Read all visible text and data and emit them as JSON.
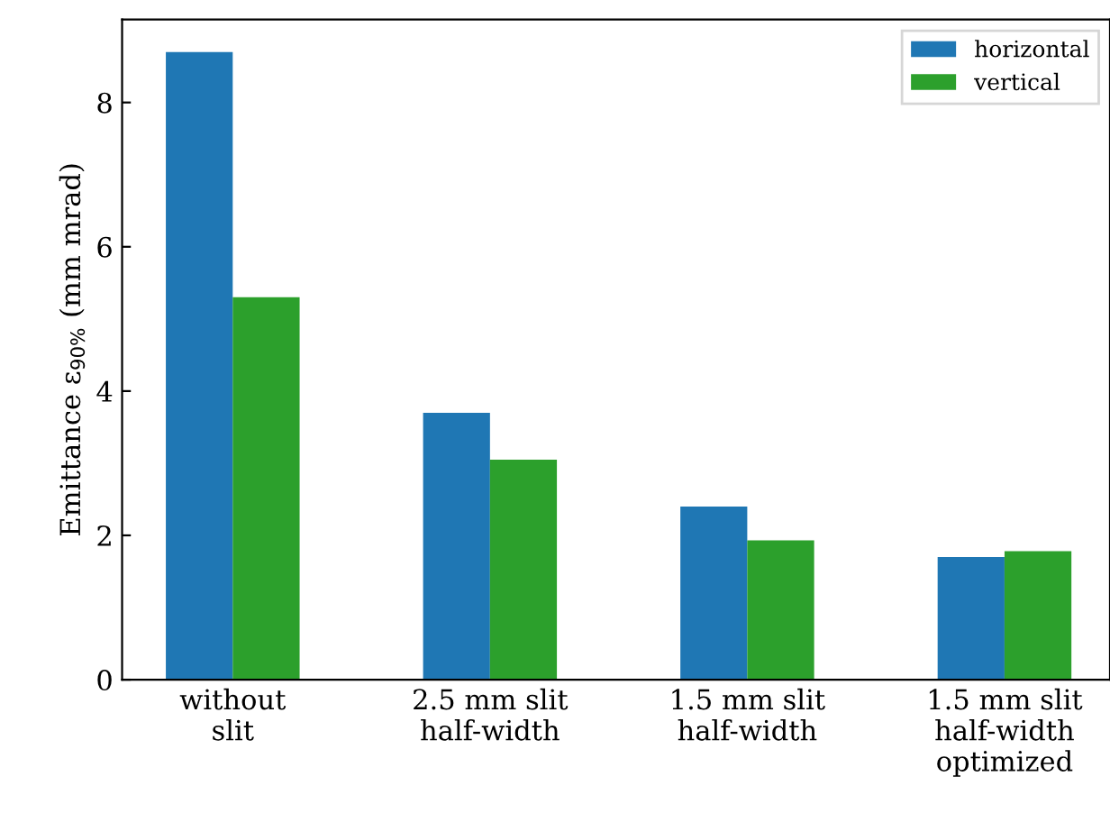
{
  "chart_data": {
    "type": "bar",
    "ylabel": "Emittance ε$_{90%}$ (mm mrad)",
    "categories": [
      "without\nslit",
      "2.5 mm slit\nhalf-width",
      "1.5 mm slit\nhalf-width",
      "1.5 mm slit\nhalf-width\noptimized"
    ],
    "series": [
      {
        "name": "horizontal",
        "color": "#1f77b4",
        "values": [
          8.7,
          3.7,
          2.4,
          1.7
        ]
      },
      {
        "name": "vertical",
        "color": "#2ca02c",
        "values": [
          5.3,
          3.05,
          1.93,
          1.78
        ]
      }
    ],
    "ylim": [
      0,
      9.15
    ],
    "yticks": [
      0,
      2,
      4,
      6,
      8
    ],
    "legend": "top right",
    "grid": false
  }
}
